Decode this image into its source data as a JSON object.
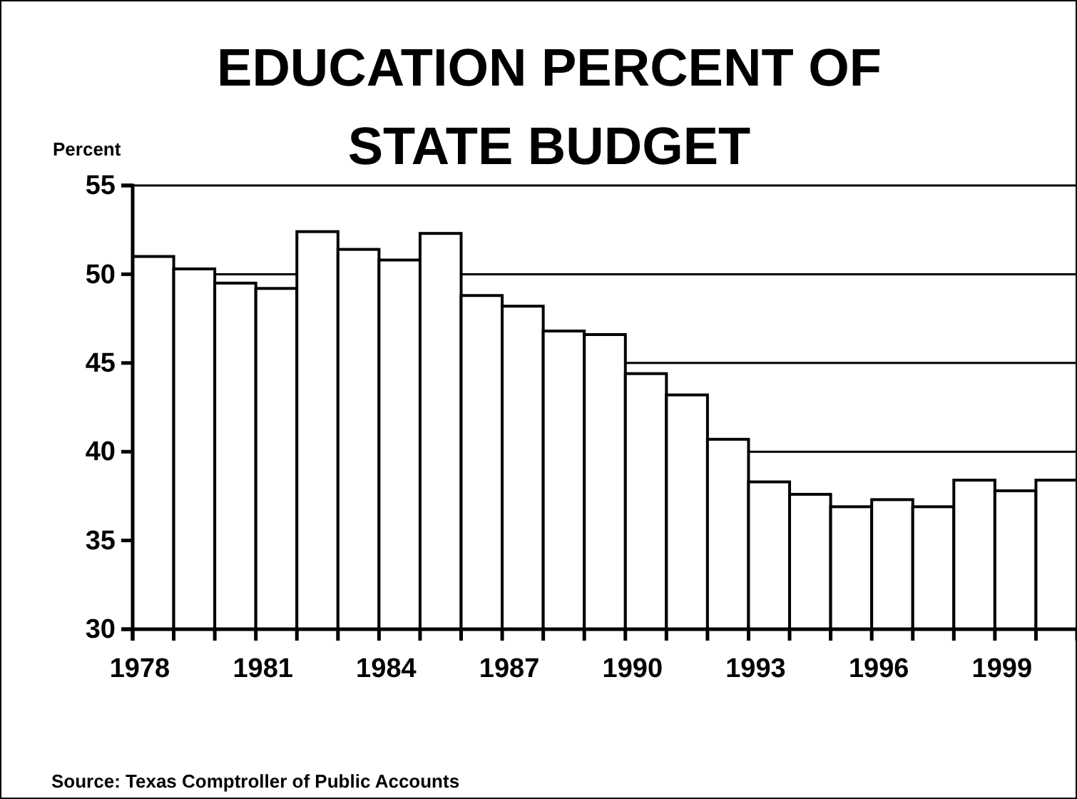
{
  "chart_data": {
    "type": "bar",
    "title": "EDUCATION PERCENT OF STATE BUDGET",
    "ylabel": "Percent",
    "categories": [
      "1978",
      null,
      null,
      "1981",
      null,
      null,
      "1984",
      null,
      null,
      "1987",
      null,
      null,
      "1990",
      null,
      null,
      "1993",
      null,
      null,
      "1996",
      null,
      null,
      "1999",
      null
    ],
    "values": [
      51.0,
      50.3,
      49.5,
      49.2,
      52.4,
      51.4,
      50.8,
      52.3,
      48.8,
      48.2,
      46.8,
      46.6,
      44.4,
      43.2,
      40.7,
      38.3,
      37.6,
      36.9,
      37.3,
      36.9,
      38.4,
      37.8,
      38.4
    ],
    "color": "#ffffff",
    "ylim": [
      30,
      55
    ],
    "yticks": [
      30,
      35,
      40,
      45,
      50,
      55
    ],
    "grid": "y",
    "annotations": [
      "Source: Texas Comptroller of Public Accounts"
    ]
  }
}
